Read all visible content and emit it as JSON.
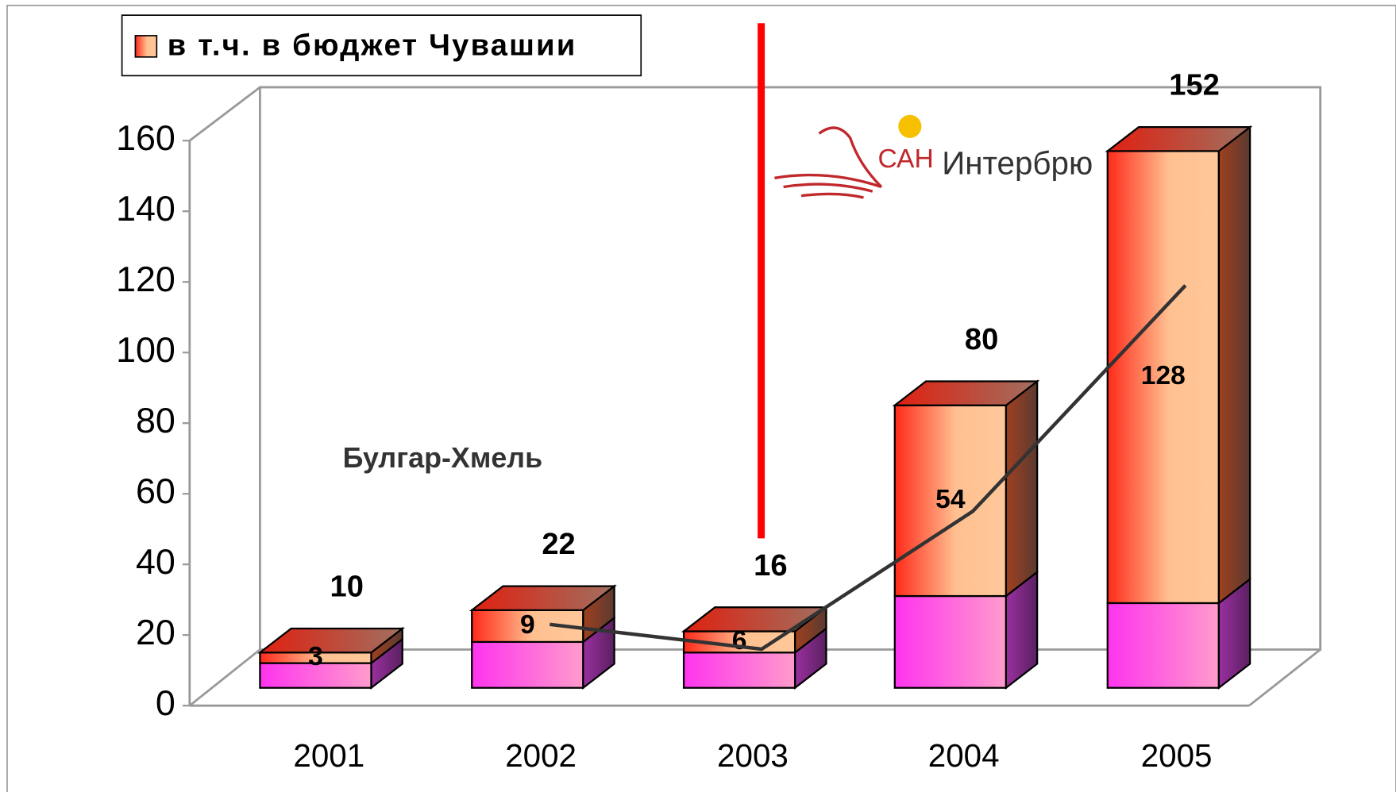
{
  "chart_data": {
    "type": "bar",
    "stacked": true,
    "categories": [
      "2001",
      "2002",
      "2003",
      "2004",
      "2005"
    ],
    "series": [
      {
        "color": "#ff33ee",
        "values": [
          7,
          13,
          10,
          26,
          24
        ]
      },
      {
        "name": "в т.ч. в бюджет Чувашии",
        "color": "#ff2a1a",
        "values": [
          3,
          9,
          6,
          54,
          128
        ]
      }
    ],
    "totals": [
      10,
      22,
      16,
      80,
      152
    ],
    "trend": {
      "color": "#333333",
      "values": [
        null,
        23,
        16,
        55,
        119
      ]
    },
    "annotation": "Булгар-Хмель",
    "ylim": [
      0,
      160
    ],
    "yticks": [
      0,
      20,
      40,
      60,
      80,
      100,
      120,
      140,
      160
    ]
  },
  "logo": {
    "short": "САН",
    "name": "Интербрю"
  }
}
